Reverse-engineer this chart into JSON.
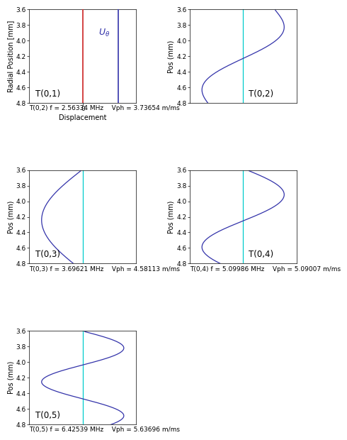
{
  "r_inner": 3.61,
  "r_outer": 4.85,
  "r_min": 3.6,
  "r_max": 4.8,
  "yticks": [
    3.6,
    3.8,
    4.0,
    4.2,
    4.4,
    4.6,
    4.8
  ],
  "captions": [
    "",
    "T(0,2) f = 2.56334 MHz    Vph = 3.73654 m/ms",
    "T(0,3) f = 3.69621 MHz    Vph = 4.58113 m/ms",
    "T(0,4) f = 5.09986 MHz    Vph = 5.09007 m/ms",
    "T(0,5) f = 6.42539 MHz    Vph = 5.63696 m/ms"
  ],
  "blue": "#3333aa",
  "red": "#cc2222",
  "cyan": "#00cccc",
  "bg": "#f2f2f2"
}
